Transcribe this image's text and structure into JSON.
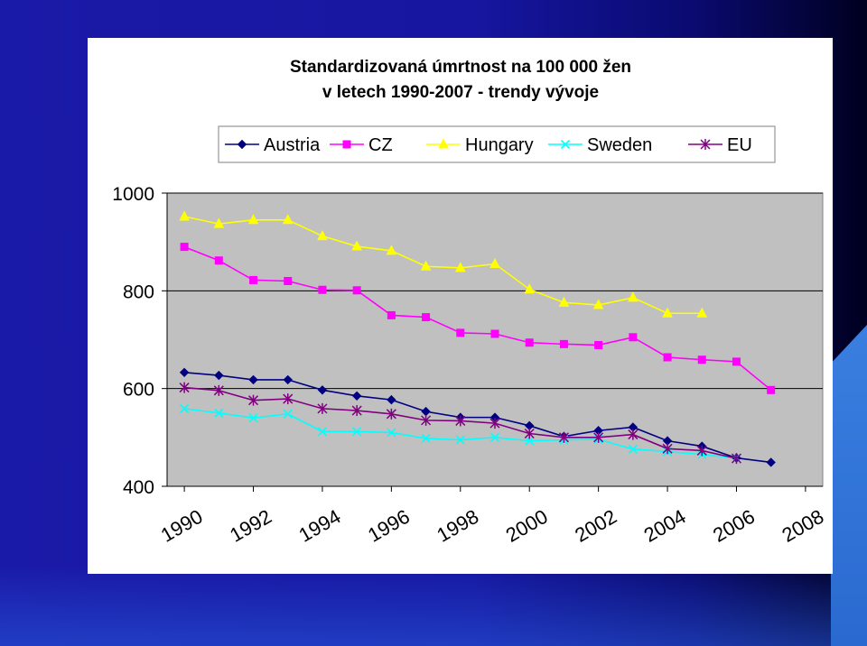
{
  "chart_data": {
    "type": "line",
    "title": "Standardizovaná úmrtnost na 100 000 žen",
    "subtitle": "v letech 1990-2007 - trendy vývoje",
    "xlabel": "",
    "ylabel": "",
    "xlim": [
      1989.5,
      2008.5
    ],
    "ylim": [
      400,
      1000
    ],
    "xticks": [
      1990,
      1992,
      1994,
      1996,
      1998,
      2000,
      2002,
      2004,
      2006,
      2008
    ],
    "yticks": [
      400,
      600,
      800,
      1000
    ],
    "grid": "horizontal",
    "legend_position": "top",
    "plot_background": "#c0c0c0",
    "series": [
      {
        "name": "Austria",
        "color": "#000080",
        "marker": "diamond",
        "x": [
          1990,
          1991,
          1992,
          1993,
          1994,
          1995,
          1996,
          1997,
          1998,
          1999,
          2000,
          2001,
          2002,
          2003,
          2004,
          2005,
          2006,
          2007
        ],
        "values": [
          633,
          627,
          618,
          618,
          597,
          585,
          577,
          553,
          541,
          541,
          524,
          502,
          514,
          521,
          493,
          482,
          458,
          449
        ]
      },
      {
        "name": "CZ",
        "color": "#ff00ff",
        "marker": "square",
        "x": [
          1990,
          1991,
          1992,
          1993,
          1994,
          1995,
          1996,
          1997,
          1998,
          1999,
          2000,
          2001,
          2002,
          2003,
          2004,
          2005,
          2006,
          2007
        ],
        "values": [
          890,
          862,
          822,
          820,
          802,
          801,
          750,
          746,
          714,
          712,
          694,
          691,
          689,
          705,
          664,
          659,
          655,
          597
        ]
      },
      {
        "name": "Hungary",
        "color": "#ffff00",
        "marker": "triangle",
        "x": [
          1990,
          1991,
          1992,
          1993,
          1994,
          1995,
          1996,
          1997,
          1998,
          1999,
          2000,
          2001,
          2002,
          2003,
          2004,
          2005
        ],
        "values": [
          952,
          937,
          945,
          945,
          912,
          891,
          882,
          850,
          847,
          855,
          803,
          776,
          771,
          786,
          754,
          754
        ]
      },
      {
        "name": "Sweden",
        "color": "#00ffff",
        "marker": "x",
        "x": [
          1990,
          1991,
          1992,
          1993,
          1994,
          1995,
          1996,
          1997,
          1998,
          1999,
          2000,
          2001,
          2002,
          2003,
          2004,
          2005,
          2006
        ],
        "values": [
          559,
          550,
          540,
          548,
          512,
          512,
          510,
          498,
          495,
          500,
          493,
          495,
          496,
          476,
          471,
          465,
          458
        ]
      },
      {
        "name": "EU",
        "color": "#800080",
        "marker": "star",
        "x": [
          1990,
          1991,
          1992,
          1993,
          1994,
          1995,
          1996,
          1997,
          1998,
          1999,
          2000,
          2001,
          2002,
          2003,
          2004,
          2005,
          2006
        ],
        "values": [
          602,
          596,
          576,
          579,
          559,
          555,
          548,
          535,
          534,
          529,
          508,
          500,
          500,
          506,
          477,
          473,
          457
        ]
      }
    ]
  }
}
